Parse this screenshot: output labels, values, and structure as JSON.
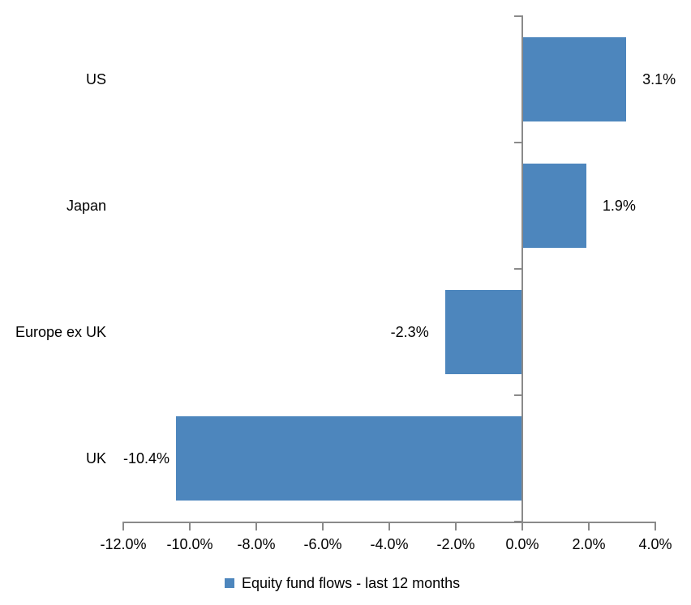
{
  "chart_data": {
    "type": "bar",
    "orientation": "horizontal",
    "title": "",
    "xlabel": "",
    "ylabel": "",
    "categories": [
      "US",
      "Japan",
      "Europe ex UK",
      "UK"
    ],
    "values": [
      3.1,
      1.9,
      -2.3,
      -10.4
    ],
    "data_labels": [
      "3.1%",
      "1.9%",
      "-2.3%",
      "-10.4%"
    ],
    "series_name": "Equity fund flows - last 12 months",
    "xlim": [
      -12,
      4
    ],
    "x_tick_step": 2,
    "x_tick_labels": [
      "-12.0%",
      "-10.0%",
      "-8.0%",
      "-6.0%",
      "-4.0%",
      "-2.0%",
      "0.0%",
      "2.0%",
      "4.0%"
    ],
    "grid": false,
    "legend_position": "bottom",
    "colors": {
      "bar": "#4D86BD",
      "axis": "#8A8A8A",
      "text": "#000000",
      "background": "#FFFFFF"
    }
  },
  "legend": {
    "label": "Equity fund flows - last 12 months"
  }
}
